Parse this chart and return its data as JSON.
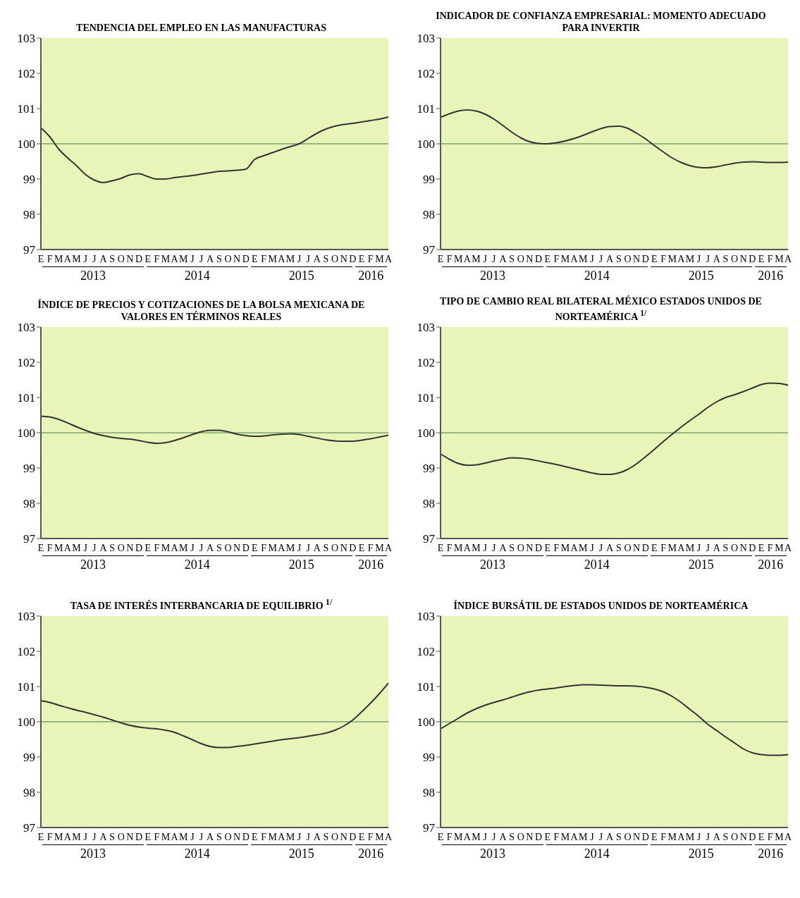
{
  "chart_data": [
    {
      "type": "line",
      "title": "TENDENCIA DEL EMPLEO EN LAS MANUFACTURAS",
      "categories": [
        "E",
        "F",
        "M",
        "A",
        "M",
        "J",
        "J",
        "A",
        "S",
        "O",
        "N",
        "D",
        "E",
        "F",
        "M",
        "A",
        "M",
        "J",
        "J",
        "A",
        "S",
        "O",
        "N",
        "D",
        "E",
        "F",
        "M",
        "A",
        "M",
        "J",
        "J",
        "A",
        "S",
        "O",
        "N",
        "D",
        "E",
        "F",
        "M",
        "A"
      ],
      "series": [
        {
          "color": "#333333",
          "values": [
            100.45,
            100.2,
            99.85,
            99.6,
            99.38,
            99.13,
            98.97,
            98.9,
            98.95,
            99.02,
            99.12,
            99.15,
            99.07,
            99.0,
            99.0,
            99.04,
            99.07,
            99.1,
            99.14,
            99.18,
            99.22,
            99.23,
            99.25,
            99.28,
            99.56,
            99.66,
            99.75,
            99.84,
            99.92,
            100.0,
            100.15,
            100.3,
            100.42,
            100.5,
            100.55,
            100.58,
            100.62,
            100.66,
            100.7,
            100.76
          ]
        }
      ],
      "ylim": [
        97,
        103
      ],
      "yticks": [
        97,
        98,
        99,
        100,
        101,
        102,
        103
      ],
      "ref_lines": [
        {
          "axis": "y",
          "value": 100,
          "color": "#7f9f6f"
        }
      ],
      "annotations": [
        "2013",
        "2014",
        "2015",
        "2016"
      ],
      "marker": "none",
      "line_style": "solid"
    },
    {
      "type": "line",
      "title": "INDICADOR DE CONFIANZA EMPRESARIAL: MOMENTO ADECUADO PARA INVERTIR",
      "categories": [
        "E",
        "F",
        "M",
        "A",
        "M",
        "J",
        "J",
        "A",
        "S",
        "O",
        "N",
        "D",
        "E",
        "F",
        "M",
        "A",
        "M",
        "J",
        "J",
        "A",
        "S",
        "O",
        "N",
        "D",
        "E",
        "F",
        "M",
        "A",
        "M",
        "J",
        "J",
        "A",
        "S",
        "O",
        "N",
        "D",
        "E",
        "F",
        "M",
        "A"
      ],
      "series": [
        {
          "color": "#333333",
          "values": [
            100.75,
            100.85,
            100.93,
            100.96,
            100.93,
            100.84,
            100.7,
            100.52,
            100.33,
            100.17,
            100.06,
            100.01,
            100.0,
            100.03,
            100.08,
            100.15,
            100.24,
            100.34,
            100.43,
            100.49,
            100.5,
            100.44,
            100.3,
            100.14,
            99.95,
            99.77,
            99.6,
            99.47,
            99.38,
            99.33,
            99.32,
            99.35,
            99.4,
            99.45,
            99.48,
            99.49,
            99.48,
            99.47,
            99.47,
            99.48
          ]
        }
      ],
      "ylim": [
        97,
        103
      ],
      "yticks": [
        97,
        98,
        99,
        100,
        101,
        102,
        103
      ],
      "ref_lines": [
        {
          "axis": "y",
          "value": 100,
          "color": "#7f9f6f"
        }
      ],
      "annotations": [
        "2013",
        "2014",
        "2015",
        "2016"
      ],
      "marker": "none",
      "line_style": "solid"
    },
    {
      "type": "line",
      "title": "ÍNDICE DE PRECIOS Y COTIZACIONES DE LA BOLSA MEXICANA DE VALORES EN TÉRMINOS REALES",
      "categories": [
        "E",
        "F",
        "M",
        "A",
        "M",
        "J",
        "J",
        "A",
        "S",
        "O",
        "N",
        "D",
        "E",
        "F",
        "M",
        "A",
        "M",
        "J",
        "J",
        "A",
        "S",
        "O",
        "N",
        "D",
        "E",
        "F",
        "M",
        "A",
        "M",
        "J",
        "J",
        "A",
        "S",
        "O",
        "N",
        "D",
        "E",
        "F",
        "M",
        "A"
      ],
      "series": [
        {
          "color": "#333333",
          "values": [
            100.47,
            100.45,
            100.38,
            100.28,
            100.17,
            100.07,
            99.98,
            99.92,
            99.87,
            99.84,
            99.82,
            99.78,
            99.73,
            99.7,
            99.72,
            99.78,
            99.86,
            99.95,
            100.03,
            100.07,
            100.07,
            100.03,
            99.96,
            99.92,
            99.9,
            99.91,
            99.94,
            99.96,
            99.97,
            99.95,
            99.9,
            99.85,
            99.8,
            99.77,
            99.76,
            99.76,
            99.79,
            99.83,
            99.88,
            99.93
          ]
        }
      ],
      "ylim": [
        97,
        103
      ],
      "yticks": [
        97,
        98,
        99,
        100,
        101,
        102,
        103
      ],
      "ref_lines": [
        {
          "axis": "y",
          "value": 100,
          "color": "#7f9f6f"
        }
      ],
      "annotations": [
        "2013",
        "2014",
        "2015",
        "2016"
      ],
      "marker": "none",
      "line_style": "solid"
    },
    {
      "type": "line",
      "title": "TIPO DE CAMBIO REAL BILATERAL MÉXICO ESTADOS UNIDOS DE NORTEAMÉRICA $^{1/}$",
      "categories": [
        "E",
        "F",
        "M",
        "A",
        "M",
        "J",
        "J",
        "A",
        "S",
        "O",
        "N",
        "D",
        "E",
        "F",
        "M",
        "A",
        "M",
        "J",
        "J",
        "A",
        "S",
        "O",
        "N",
        "D",
        "E",
        "F",
        "M",
        "A",
        "M",
        "J",
        "J",
        "A",
        "S",
        "O",
        "N",
        "D",
        "E",
        "F",
        "M",
        "A"
      ],
      "series": [
        {
          "color": "#333333",
          "values": [
            99.4,
            99.25,
            99.13,
            99.08,
            99.09,
            99.14,
            99.2,
            99.25,
            99.29,
            99.28,
            99.25,
            99.2,
            99.15,
            99.1,
            99.04,
            98.98,
            98.92,
            98.86,
            98.82,
            98.82,
            98.86,
            98.96,
            99.12,
            99.32,
            99.53,
            99.75,
            99.96,
            100.16,
            100.35,
            100.53,
            100.72,
            100.88,
            101.0,
            101.08,
            101.17,
            101.27,
            101.37,
            101.41,
            101.4,
            101.35
          ]
        }
      ],
      "ylim": [
        97,
        103
      ],
      "yticks": [
        97,
        98,
        99,
        100,
        101,
        102,
        103
      ],
      "ref_lines": [
        {
          "axis": "y",
          "value": 100,
          "color": "#7f9f6f"
        }
      ],
      "annotations": [
        "2013",
        "2014",
        "2015",
        "2016"
      ],
      "marker": "none",
      "line_style": "solid"
    },
    {
      "type": "line",
      "title": "TASA DE INTERÉS INTERBANCARIA DE EQUILIBRIO $^{1/}$",
      "categories": [
        "E",
        "F",
        "M",
        "A",
        "M",
        "J",
        "J",
        "A",
        "S",
        "O",
        "N",
        "D",
        "E",
        "F",
        "M",
        "A",
        "M",
        "J",
        "J",
        "A",
        "S",
        "O",
        "N",
        "D",
        "E",
        "F",
        "M",
        "A",
        "M",
        "J",
        "J",
        "A",
        "S",
        "O",
        "N",
        "D",
        "E",
        "F",
        "M",
        "A"
      ],
      "series": [
        {
          "color": "#333333",
          "values": [
            100.6,
            100.55,
            100.47,
            100.4,
            100.33,
            100.27,
            100.2,
            100.13,
            100.05,
            99.97,
            99.9,
            99.85,
            99.82,
            99.8,
            99.76,
            99.7,
            99.6,
            99.49,
            99.38,
            99.3,
            99.27,
            99.27,
            99.3,
            99.33,
            99.37,
            99.41,
            99.45,
            99.49,
            99.52,
            99.55,
            99.59,
            99.63,
            99.68,
            99.76,
            99.88,
            100.05,
            100.28,
            100.53,
            100.8,
            101.1
          ]
        }
      ],
      "ylim": [
        97,
        103
      ],
      "yticks": [
        97,
        98,
        99,
        100,
        101,
        102,
        103
      ],
      "ref_lines": [
        {
          "axis": "y",
          "value": 100,
          "color": "#7f9f6f"
        }
      ],
      "annotations": [
        "2013",
        "2014",
        "2015",
        "2016"
      ],
      "marker": "none",
      "line_style": "solid"
    },
    {
      "type": "line",
      "title": "ÍNDICE BURSÁTIL DE ESTADOS UNIDOS DE NORTEAMÉRICA",
      "categories": [
        "E",
        "F",
        "M",
        "A",
        "M",
        "J",
        "J",
        "A",
        "S",
        "O",
        "N",
        "D",
        "E",
        "F",
        "M",
        "A",
        "M",
        "J",
        "J",
        "A",
        "S",
        "O",
        "N",
        "D",
        "E",
        "F",
        "M",
        "A",
        "M",
        "J",
        "J",
        "A",
        "S",
        "O",
        "N",
        "D",
        "E",
        "F",
        "M",
        "A"
      ],
      "series": [
        {
          "color": "#333333",
          "values": [
            99.8,
            99.95,
            100.1,
            100.25,
            100.37,
            100.47,
            100.55,
            100.62,
            100.7,
            100.78,
            100.85,
            100.9,
            100.93,
            100.96,
            101.0,
            101.03,
            101.05,
            101.05,
            101.04,
            101.03,
            101.02,
            101.02,
            101.01,
            100.98,
            100.93,
            100.85,
            100.72,
            100.55,
            100.35,
            100.15,
            99.93,
            99.75,
            99.57,
            99.4,
            99.23,
            99.12,
            99.07,
            99.05,
            99.05,
            99.07
          ]
        }
      ],
      "ylim": [
        97,
        103
      ],
      "yticks": [
        97,
        98,
        99,
        100,
        101,
        102,
        103
      ],
      "ref_lines": [
        {
          "axis": "y",
          "value": 100,
          "color": "#7f9f6f"
        }
      ],
      "annotations": [
        "2013",
        "2014",
        "2015",
        "2016"
      ],
      "marker": "none",
      "line_style": "solid"
    }
  ]
}
